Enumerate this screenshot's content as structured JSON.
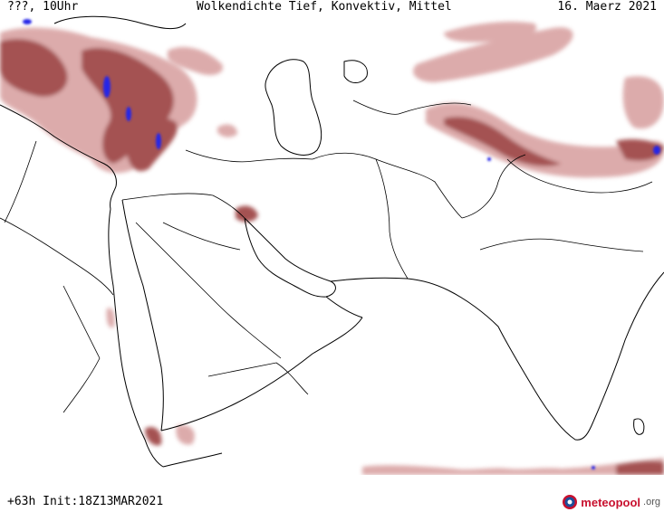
{
  "header": {
    "left": "???, 10Uhr",
    "center": "Wolkendichte  Tief, Konvektiv, Mittel",
    "right": "16. Maerz 2021"
  },
  "footer": {
    "run_info": "+63h Init:18Z13MAR2021",
    "logo": {
      "brand": "meteopool",
      "tld": ".org"
    }
  },
  "colors": {
    "cloud_dense": "#9b3f3f",
    "cloud_light": "#d9a3a3",
    "convective": "#2828e6",
    "coast": "#000000",
    "background": "#ffffff"
  },
  "icons": {
    "logo_mark": "meteopool-logo-icon"
  }
}
